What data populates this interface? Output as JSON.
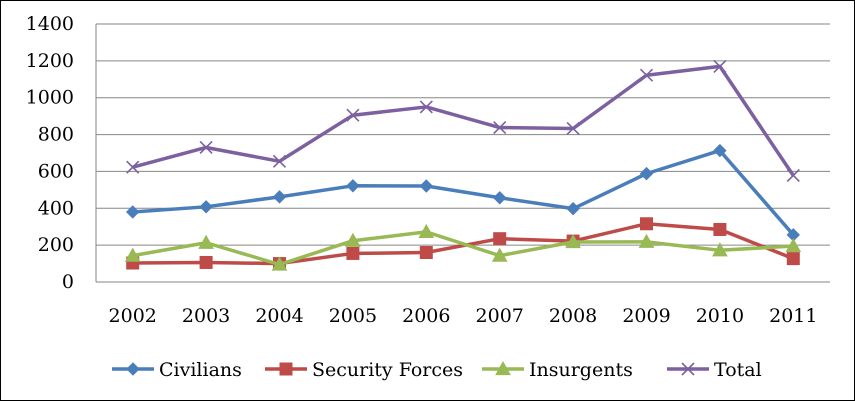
{
  "chart_data": {
    "type": "line",
    "title": "",
    "xlabel": "",
    "ylabel": "",
    "categories": [
      "2002",
      "2003",
      "2004",
      "2005",
      "2006",
      "2007",
      "2008",
      "2009",
      "2010",
      "2011"
    ],
    "ylim": [
      0,
      1400
    ],
    "yticks": [
      "0",
      "200",
      "400",
      "600",
      "800",
      "1000",
      "1200",
      "1400"
    ],
    "grid": true,
    "legend_position": "bottom",
    "series": [
      {
        "name": "Civilians",
        "color": "#4A7EBB",
        "marker": "diamond",
        "values": [
          380,
          408,
          462,
          522,
          521,
          457,
          398,
          588,
          713,
          256
        ]
      },
      {
        "name": "Security Forces",
        "color": "#BE4B48",
        "marker": "square",
        "values": [
          103,
          106,
          100,
          155,
          160,
          235,
          222,
          316,
          285,
          127
        ]
      },
      {
        "name": "Insurgents",
        "color": "#98B954",
        "marker": "triangle",
        "values": [
          143,
          213,
          95,
          224,
          272,
          143,
          217,
          218,
          172,
          195
        ]
      },
      {
        "name": "Total",
        "color": "#7D60A0",
        "marker": "x",
        "values": [
          623,
          730,
          655,
          905,
          950,
          838,
          833,
          1122,
          1170,
          578
        ]
      }
    ]
  }
}
